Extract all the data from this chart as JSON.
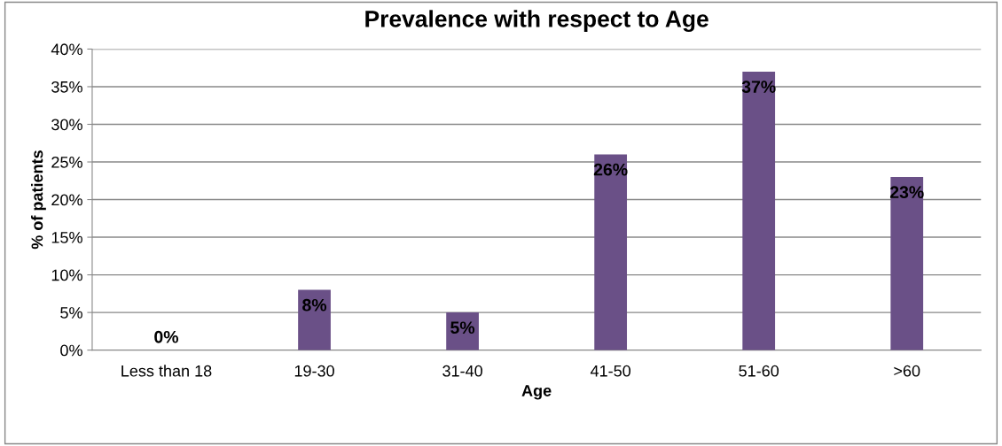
{
  "chart_data": {
    "type": "bar",
    "title": "Prevalence with respect to Age",
    "xlabel": "Age",
    "ylabel": "% of patients",
    "categories": [
      "Less than 18",
      "19-30",
      "31-40",
      "41-50",
      "51-60",
      ">60"
    ],
    "values": [
      0,
      8,
      5,
      26,
      37,
      23
    ],
    "value_labels": [
      "0%",
      "8%",
      "5%",
      "26%",
      "37%",
      "23%"
    ],
    "color": "#6a5087",
    "ylim": [
      0,
      40
    ],
    "yticks": [
      {
        "value": 0,
        "label": "0%"
      },
      {
        "value": 5,
        "label": "5%"
      },
      {
        "value": 10,
        "label": "10%"
      },
      {
        "value": 15,
        "label": "15%"
      },
      {
        "value": 20,
        "label": "20%"
      },
      {
        "value": 25,
        "label": "25%"
      },
      {
        "value": 30,
        "label": "30%"
      },
      {
        "value": 35,
        "label": "35%"
      },
      {
        "value": 40,
        "label": "40%"
      }
    ],
    "grid": "y",
    "legend": false
  }
}
